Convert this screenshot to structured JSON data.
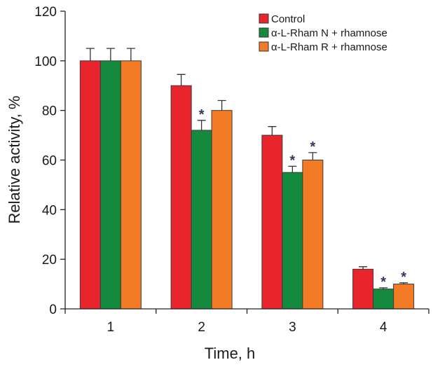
{
  "chart_data": {
    "type": "bar",
    "title": "",
    "xlabel": "Time, h",
    "ylabel": "Relative activity, %",
    "categories": [
      "1",
      "2",
      "3",
      "4"
    ],
    "ylim": [
      0,
      120
    ],
    "yticks": [
      "0",
      "20",
      "40",
      "60",
      "80",
      "100",
      "120"
    ],
    "grid": false,
    "legend_position": "top-right",
    "significance_marker": "*",
    "series": [
      {
        "name": "Control",
        "color": "#e8242c",
        "values": [
          100,
          90,
          70,
          16
        ],
        "errors": [
          5,
          4.5,
          3.5,
          1
        ],
        "significant": [
          false,
          false,
          false,
          false
        ]
      },
      {
        "name": "α-L-Rham N + rhamnose",
        "color": "#138a3e",
        "values": [
          100,
          72,
          55,
          8
        ],
        "errors": [
          5,
          4,
          2.5,
          0.5
        ],
        "significant": [
          false,
          true,
          true,
          true
        ]
      },
      {
        "name": "α-L-Rham R + rhamnose",
        "color": "#f47b25",
        "values": [
          100,
          80,
          60,
          10
        ],
        "errors": [
          5,
          4,
          3,
          0.5
        ],
        "significant": [
          false,
          false,
          true,
          true
        ]
      }
    ]
  }
}
